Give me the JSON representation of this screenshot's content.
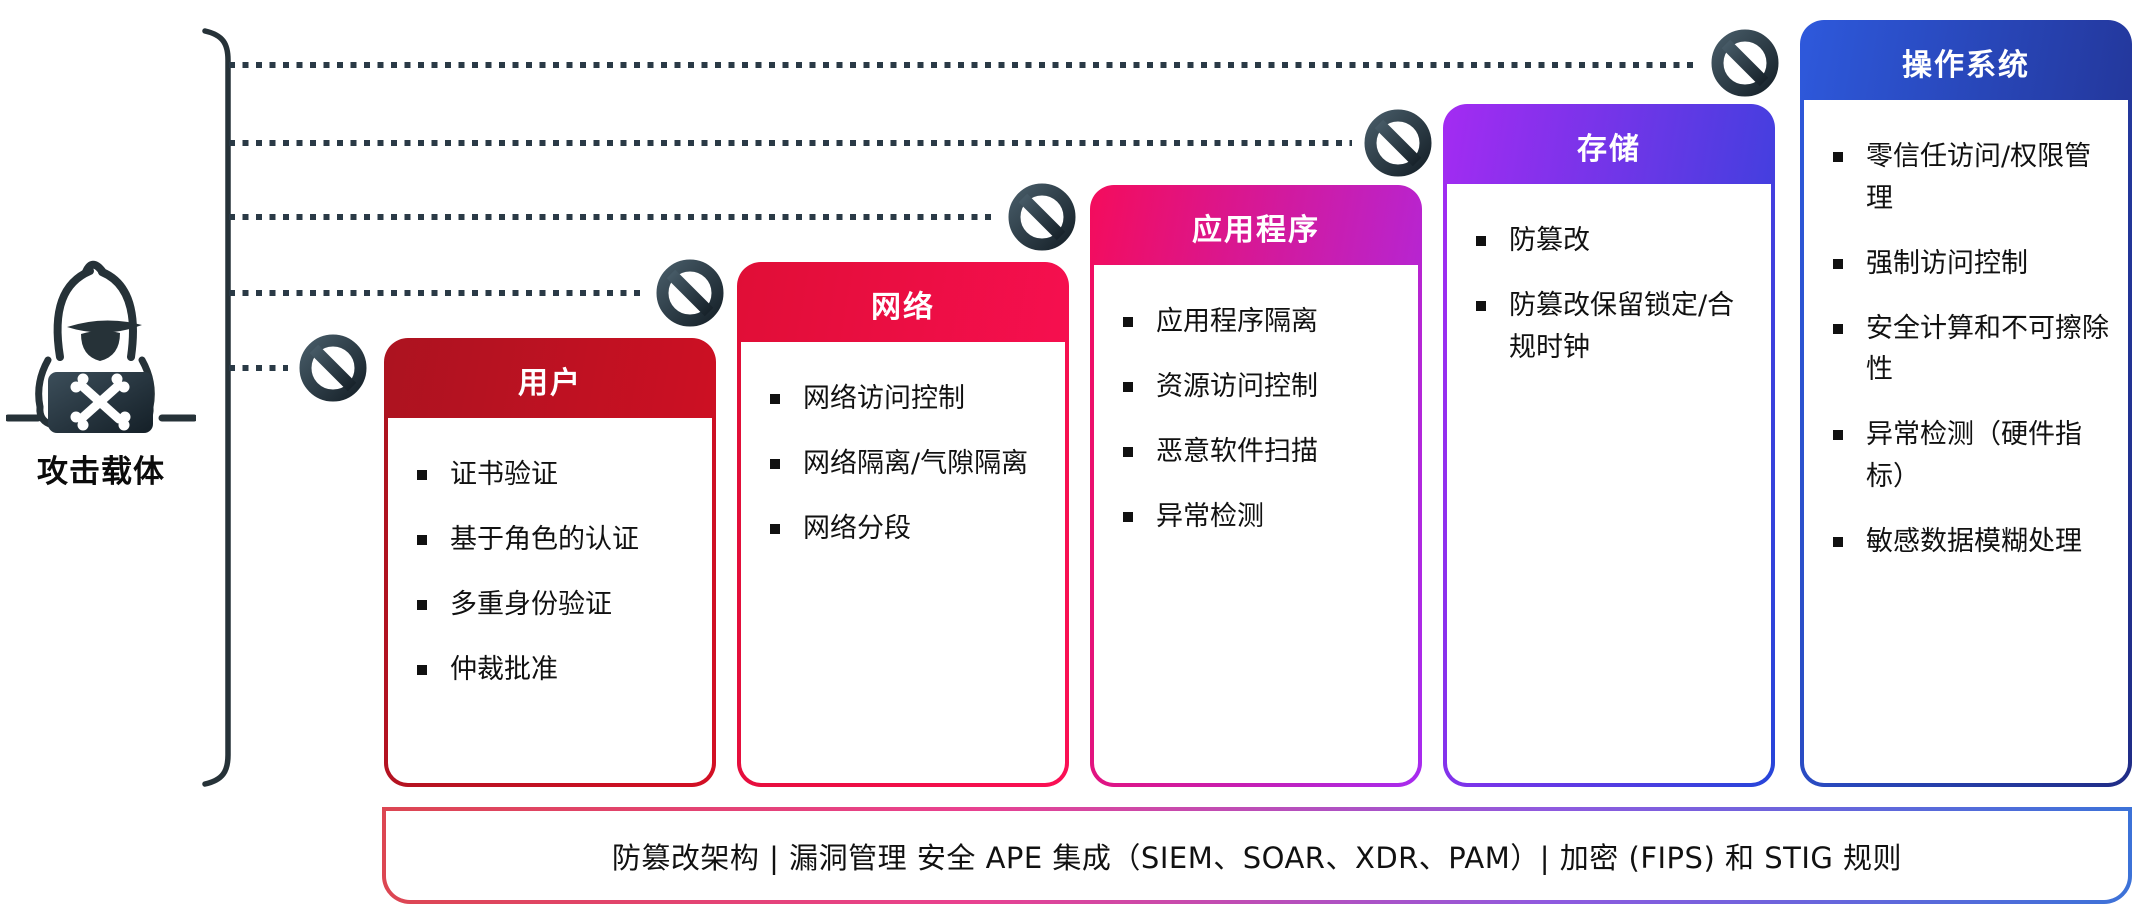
{
  "attacker": {
    "label": "攻击载体"
  },
  "colors": {
    "connector": "#2a3a46",
    "prohibition_dark": "#17222a",
    "prohibition_light": "#465a66",
    "bracket": "#263238"
  },
  "cards": [
    {
      "id": "user",
      "title": "用户",
      "gradient": [
        "#ac1320",
        "#d30f24"
      ],
      "items": [
        "证书验证",
        "基于角色的认证",
        "多重身份验证",
        "仲裁批准"
      ]
    },
    {
      "id": "network",
      "title": "网络",
      "gradient": [
        "#e00e36",
        "#fb0f55"
      ],
      "items": [
        "网络访问控制",
        "网络隔离/气隙隔离",
        "网络分段"
      ]
    },
    {
      "id": "application",
      "title": "应用程序",
      "gradient": [
        "#f40c5c",
        "#a72bf0"
      ],
      "items": [
        "应用程序隔离",
        "资源访问控制",
        "恶意软件扫描",
        "异常检测"
      ]
    },
    {
      "id": "storage",
      "title": "存储",
      "gradient": [
        "#a42bf2",
        "#2645d9"
      ],
      "items": [
        "防篡改",
        "防篡改保留锁定/合规时钟"
      ]
    },
    {
      "id": "os",
      "title": "操作系统",
      "gradient": [
        "#2e59dc",
        "#202c86"
      ],
      "items": [
        "零信任访问/权限管理",
        "强制访问控制",
        "安全计算和不可擦除性",
        "异常检测（硬件指标）",
        "敏感数据模糊处理"
      ]
    }
  ],
  "banner": {
    "text": "防篡改架构 | 漏洞管理 安全 APE 集成（SIEM、SOAR、XDR、PAM）| 加密 (FIPS) 和 STIG 规则",
    "border_gradient": [
      "#dc4652",
      "#e9418f",
      "#8f5adf",
      "#3c72d8"
    ]
  }
}
